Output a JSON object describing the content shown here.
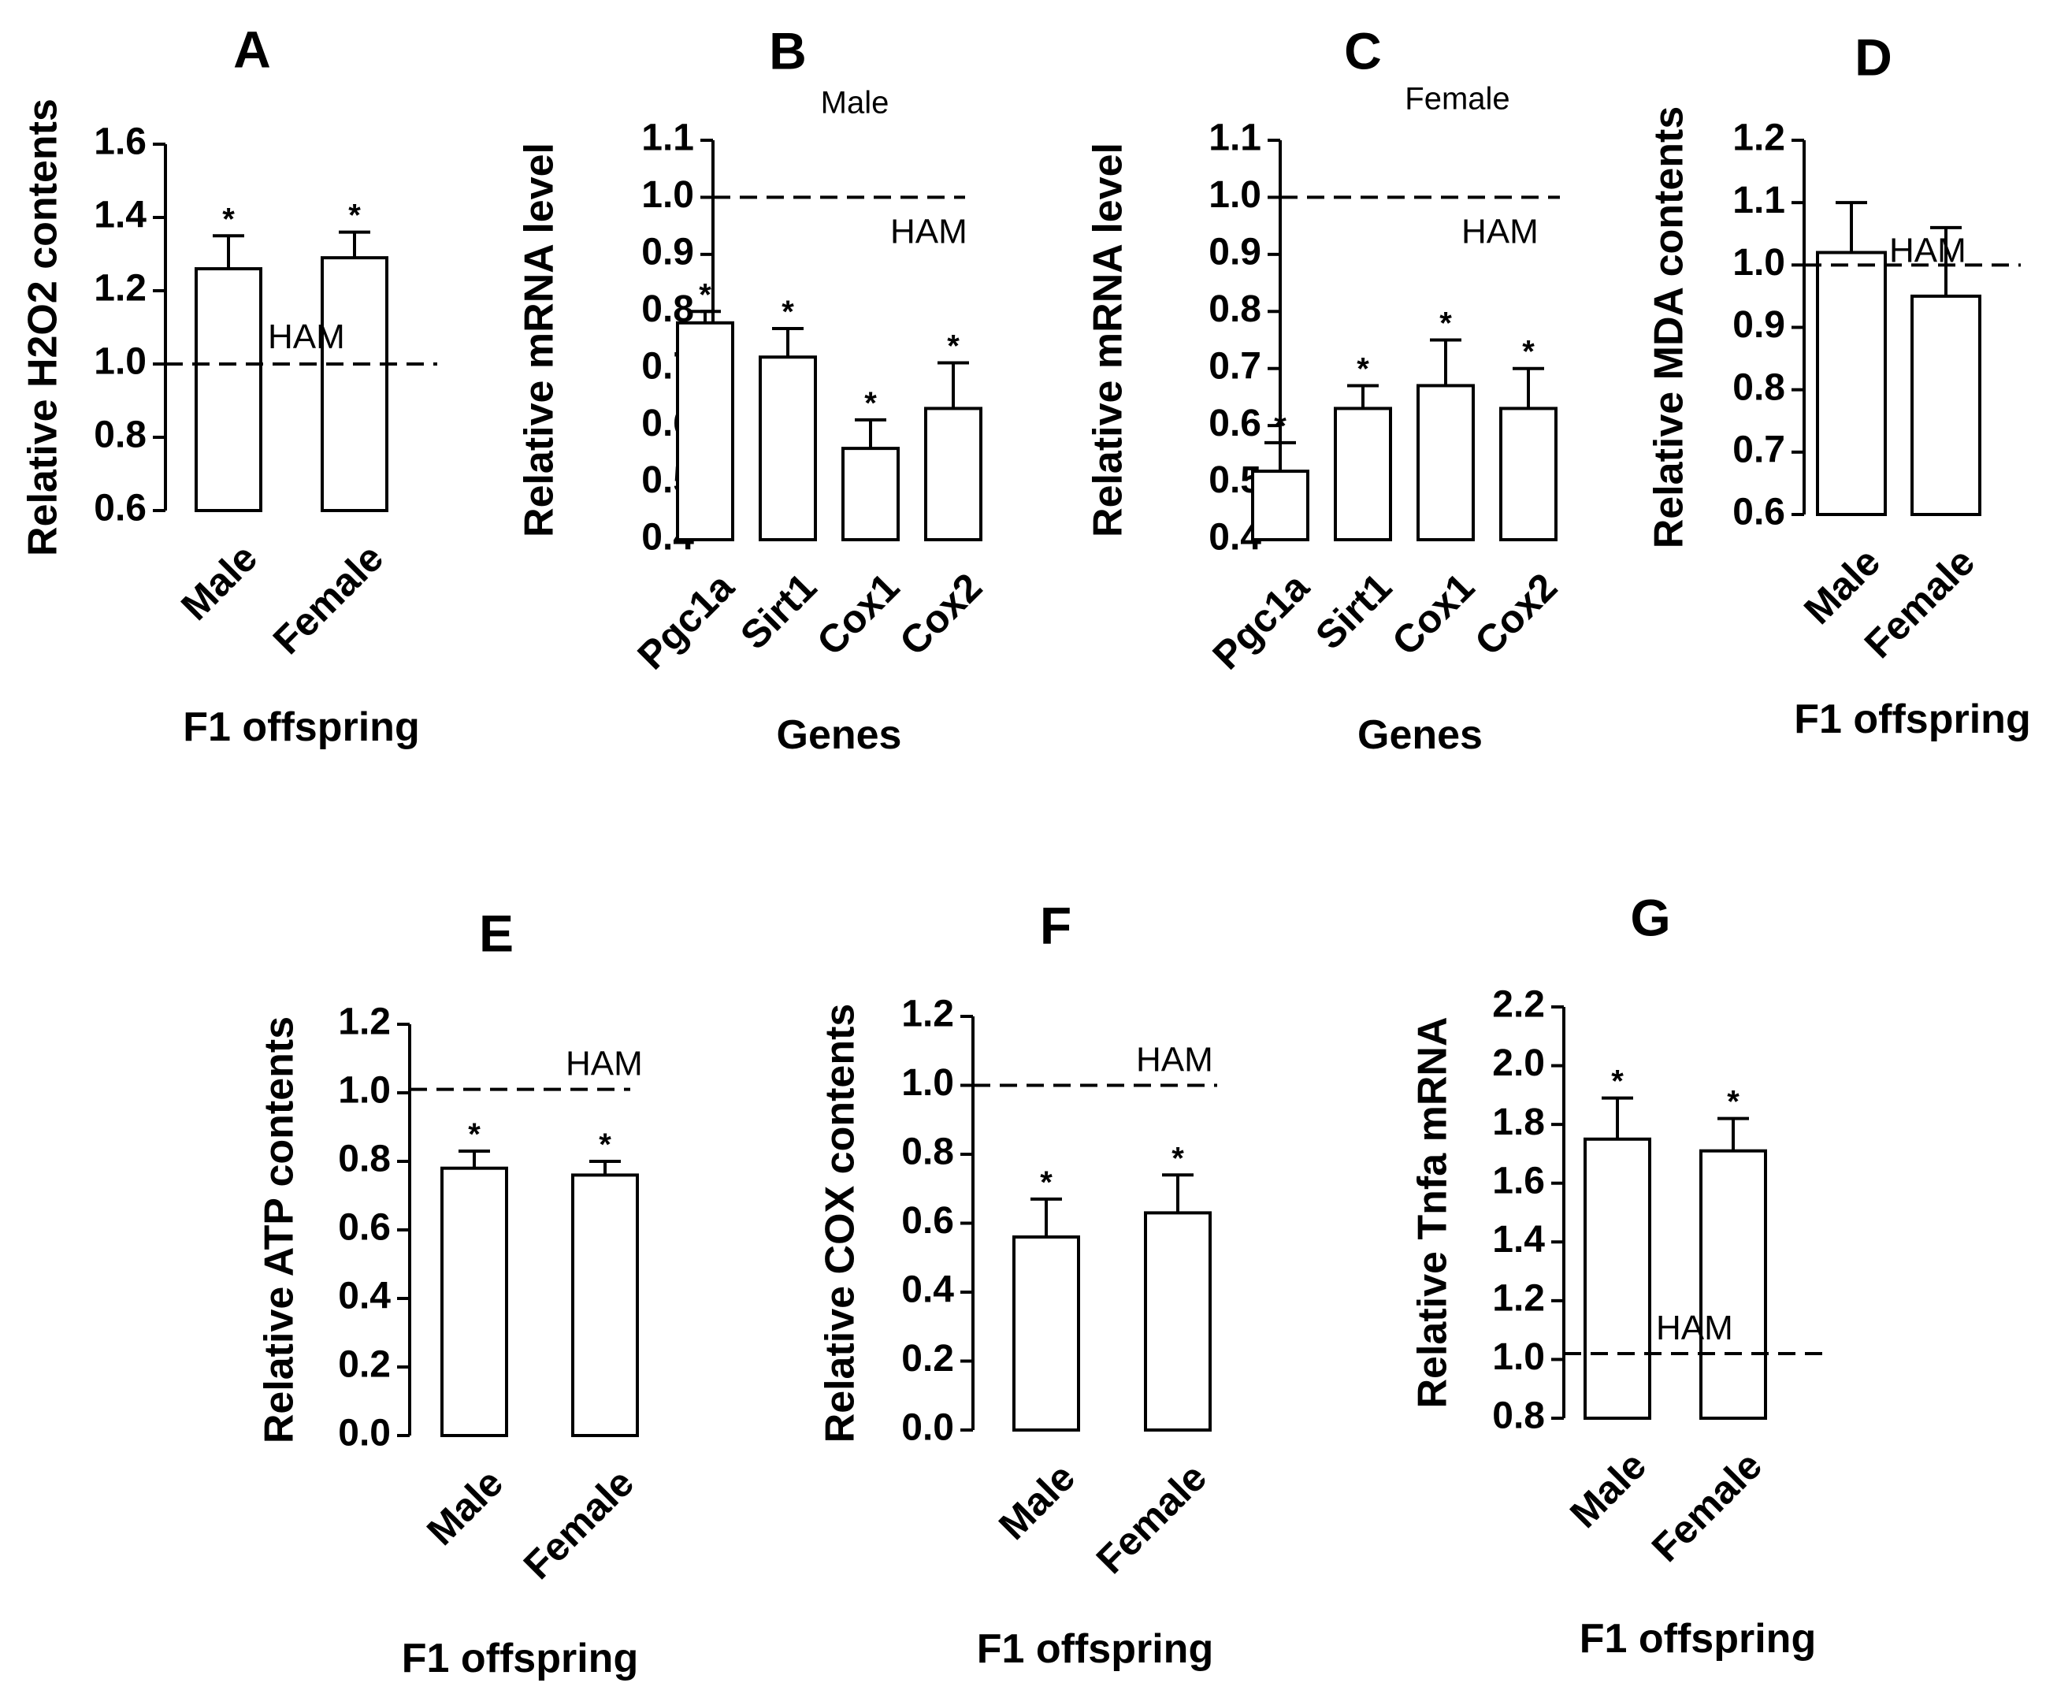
{
  "chart_data": [
    {
      "id": "A",
      "type": "bar",
      "letter": "A",
      "subtitle": "",
      "ylabel": "Relative H2O2 contents",
      "xlabel": "F1 offspring",
      "categories": [
        "Male",
        "Female"
      ],
      "values": [
        1.26,
        1.29
      ],
      "errors": [
        0.09,
        0.07
      ],
      "significant": [
        true,
        true
      ],
      "sig_marker": "*",
      "ylim": [
        0.6,
        1.6
      ],
      "yticks": [
        0.6,
        0.8,
        1.0,
        1.2,
        1.4,
        1.6
      ],
      "ytick_labels": [
        "0.6",
        "0.8",
        "1.0",
        "1.2",
        "1.4",
        "1.6"
      ],
      "reference_line": {
        "value": 1.0,
        "label": "HAM"
      }
    },
    {
      "id": "B",
      "type": "bar",
      "letter": "B",
      "subtitle": "Male",
      "ylabel": "Relative mRNA level",
      "xlabel": "Genes",
      "categories": [
        "Pgc1a",
        "Sirt1",
        "Cox1",
        "Cox2"
      ],
      "values": [
        0.78,
        0.72,
        0.56,
        0.63
      ],
      "errors": [
        0.02,
        0.05,
        0.05,
        0.08
      ],
      "significant": [
        true,
        true,
        true,
        true
      ],
      "sig_marker": "*",
      "ylim": [
        0.4,
        1.1
      ],
      "yticks": [
        0.4,
        0.5,
        0.6,
        0.7,
        0.8,
        0.9,
        1.0,
        1.1
      ],
      "ytick_labels": [
        "0.4",
        "0.5",
        "0.6",
        "0.7",
        "0.8",
        "0.9",
        "1.0",
        "1.1"
      ],
      "reference_line": {
        "value": 1.0,
        "label": "HAM"
      }
    },
    {
      "id": "C",
      "type": "bar",
      "letter": "C",
      "subtitle": "Female",
      "ylabel": "Relative mRNA level",
      "xlabel": "Genes",
      "categories": [
        "Pgc1a",
        "Sirt1",
        "Cox1",
        "Cox2"
      ],
      "values": [
        0.52,
        0.63,
        0.67,
        0.63
      ],
      "errors": [
        0.05,
        0.04,
        0.08,
        0.07
      ],
      "significant": [
        true,
        true,
        true,
        true
      ],
      "sig_marker": "*",
      "ylim": [
        0.4,
        1.1
      ],
      "yticks": [
        0.4,
        0.5,
        0.6,
        0.7,
        0.8,
        0.9,
        1.0,
        1.1
      ],
      "ytick_labels": [
        "0.4",
        "0.5",
        "0.6",
        "0.7",
        "0.8",
        "0.9",
        "1.0",
        "1.1"
      ],
      "reference_line": {
        "value": 1.0,
        "label": "HAM"
      }
    },
    {
      "id": "D",
      "type": "bar",
      "letter": "D",
      "subtitle": "",
      "ylabel": "Relative MDA contents",
      "xlabel": "F1 offspring",
      "categories": [
        "Male",
        "Female"
      ],
      "values": [
        1.02,
        0.95
      ],
      "errors": [
        0.08,
        0.11
      ],
      "significant": [
        false,
        false
      ],
      "sig_marker": "*",
      "ylim": [
        0.6,
        1.2
      ],
      "yticks": [
        0.6,
        0.7,
        0.8,
        0.9,
        1.0,
        1.1,
        1.2
      ],
      "ytick_labels": [
        "0.6",
        "0.7",
        "0.8",
        "0.9",
        "1.0",
        "1.1",
        "1.2"
      ],
      "reference_line": {
        "value": 1.0,
        "label": "HAM"
      }
    },
    {
      "id": "E",
      "type": "bar",
      "letter": "E",
      "subtitle": "",
      "ylabel": "Relative ATP contents",
      "xlabel": "F1 offspring",
      "categories": [
        "Male",
        "Female"
      ],
      "values": [
        0.78,
        0.76
      ],
      "errors": [
        0.05,
        0.04
      ],
      "significant": [
        true,
        true
      ],
      "sig_marker": "*",
      "ylim": [
        0.0,
        1.2
      ],
      "yticks": [
        0.0,
        0.2,
        0.4,
        0.6,
        0.8,
        1.0,
        1.2
      ],
      "ytick_labels": [
        "0.0",
        "0.2",
        "0.4",
        "0.6",
        "0.8",
        "1.0",
        "1.2"
      ],
      "reference_line": {
        "value": 1.01,
        "label": "HAM"
      }
    },
    {
      "id": "F",
      "type": "bar",
      "letter": "F",
      "subtitle": "",
      "ylabel": "Relative COX contents",
      "xlabel": "F1 offspring",
      "categories": [
        "Male",
        "Female"
      ],
      "values": [
        0.56,
        0.63
      ],
      "errors": [
        0.11,
        0.11
      ],
      "significant": [
        true,
        true
      ],
      "sig_marker": "*",
      "ylim": [
        0.0,
        1.2
      ],
      "yticks": [
        0.0,
        0.2,
        0.4,
        0.6,
        0.8,
        1.0,
        1.2
      ],
      "ytick_labels": [
        "0.0",
        "0.2",
        "0.4",
        "0.6",
        "0.8",
        "1.0",
        "1.2"
      ],
      "reference_line": {
        "value": 1.0,
        "label": "HAM"
      }
    },
    {
      "id": "G",
      "type": "bar",
      "letter": "G",
      "subtitle": "",
      "ylabel": "Relative Tnfa mRNA",
      "xlabel": "F1 offspring",
      "categories": [
        "Male",
        "Female"
      ],
      "values": [
        1.75,
        1.71
      ],
      "errors": [
        0.14,
        0.11
      ],
      "significant": [
        true,
        true
      ],
      "sig_marker": "*",
      "ylim": [
        0.8,
        2.2
      ],
      "yticks": [
        0.8,
        1.0,
        1.2,
        1.4,
        1.6,
        1.8,
        2.0,
        2.2
      ],
      "ytick_labels": [
        "0.8",
        "1.0",
        "1.2",
        "1.4",
        "1.6",
        "1.8",
        "2.0",
        "2.2"
      ],
      "reference_line": {
        "value": 1.02,
        "label": "HAM"
      }
    }
  ]
}
